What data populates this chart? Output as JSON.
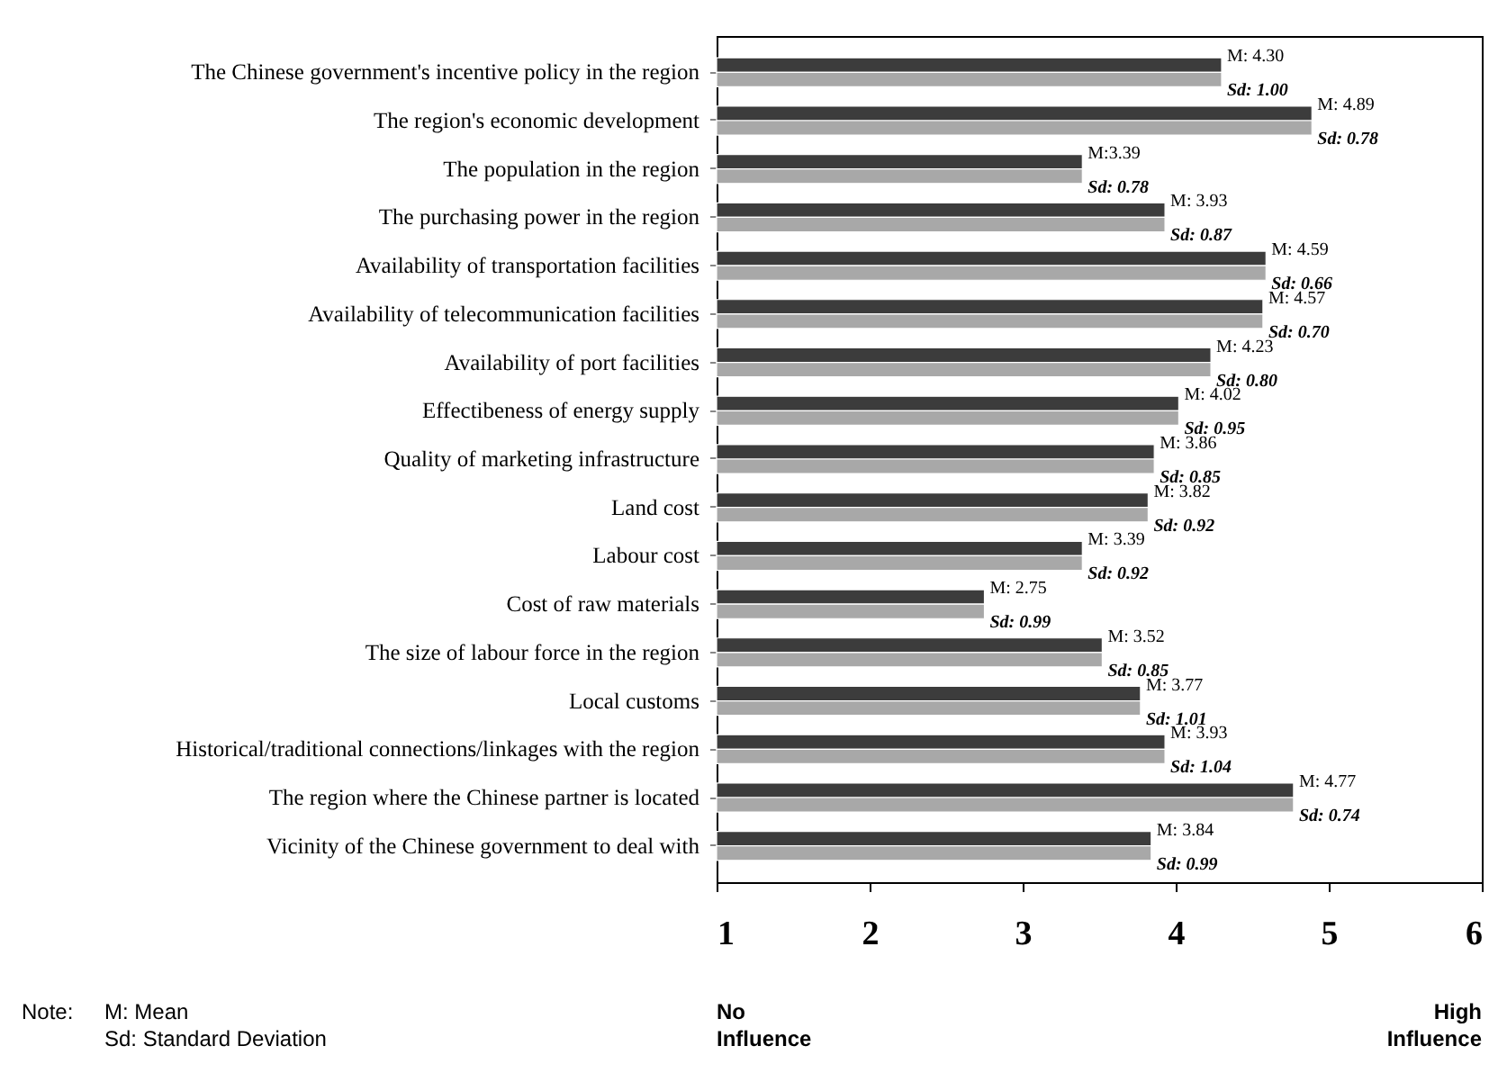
{
  "chart_data": {
    "type": "bar",
    "orientation": "horizontal",
    "categories": [
      "The Chinese government's incentive policy in the region",
      "The region's economic development",
      "The population in the region",
      "The purchasing power in the region",
      "Availability of transportation facilities",
      "Availability of telecommunication facilities",
      "Availability of port facilities",
      "Effectibeness of energy supply",
      "Quality of marketing infrastructure",
      "Land cost",
      "Labour cost",
      "Cost of raw materials",
      "The size of labour force in the region",
      "Local customs",
      "Historical/traditional connections/linkages with the region",
      "The region where the Chinese partner is located",
      "Vicinity of the Chinese government to deal with"
    ],
    "series": [
      {
        "color": "#3c3c3c",
        "values": [
          4.3,
          4.89,
          3.39,
          3.93,
          4.59,
          4.57,
          4.23,
          4.02,
          3.86,
          3.82,
          3.39,
          2.75,
          3.52,
          3.77,
          3.93,
          4.77,
          3.84
        ],
        "value_labels": [
          "M: 4.30",
          "M: 4.89",
          "M:3.39",
          "M: 3.93",
          "M: 4.59",
          "M: 4.57",
          "M: 4.23",
          "M: 4.02",
          "M: 3.86",
          "M: 3.82",
          "M: 3.39",
          "M: 2.75",
          "M: 3.52",
          "M: 3.77",
          "M: 3.93",
          "M: 4.77",
          "M: 3.84"
        ]
      },
      {
        "color": "#a8a8a8",
        "values": [
          4.3,
          4.89,
          3.39,
          3.93,
          4.59,
          4.57,
          4.23,
          4.02,
          3.86,
          3.82,
          3.39,
          2.75,
          3.52,
          3.77,
          3.93,
          4.77,
          3.84
        ]
      }
    ],
    "xlim": [
      1,
      6
    ],
    "xticks": [
      1,
      2,
      3,
      4,
      5,
      6
    ],
    "grid": false,
    "annotations": [
      "No\nInfluence",
      "High\nInfluence",
      "Note:",
      "M: Mean\nSd: Standard Deviation",
      {
        "text": "Sd: 1.00",
        "x": 4.3,
        "y": "The Chinese government's incentive policy in the region"
      },
      {
        "text": "Sd: 0.78",
        "x": 4.89,
        "y": "The region's economic development"
      },
      {
        "text": "Sd: 0.78",
        "x": 3.39,
        "y": "The population in the region"
      },
      {
        "text": "Sd: 0.87",
        "x": 3.93,
        "y": "The purchasing power in the region"
      },
      {
        "text": "Sd: 0.66",
        "x": 4.59,
        "y": "Availability of transportation facilities"
      },
      {
        "text": "Sd: 0.70",
        "x": 4.57,
        "y": "Availability of telecommunication facilities"
      },
      {
        "text": "Sd: 0.80",
        "x": 4.23,
        "y": "Availability of port facilities"
      },
      {
        "text": "Sd: 0.95",
        "x": 4.02,
        "y": "Effectibeness of energy supply"
      },
      {
        "text": "Sd: 0.85",
        "x": 3.86,
        "y": "Quality of marketing infrastructure"
      },
      {
        "text": "Sd: 0.92",
        "x": 3.82,
        "y": "Land cost"
      },
      {
        "text": "Sd: 0.92",
        "x": 3.39,
        "y": "Labour cost"
      },
      {
        "text": "Sd: 0.99",
        "x": 2.75,
        "y": "Cost of raw materials"
      },
      {
        "text": "Sd: 0.85",
        "x": 3.52,
        "y": "The size of labour force in the region"
      },
      {
        "text": "Sd: 1.01",
        "x": 3.77,
        "y": "Local customs"
      },
      {
        "text": "Sd: 1.04",
        "x": 3.93,
        "y": "Historical/traditional connections/linkages with the region"
      },
      {
        "text": "Sd: 0.74",
        "x": 4.77,
        "y": "The region where the Chinese partner is located"
      },
      {
        "text": "Sd: 0.99",
        "x": 3.84,
        "y": "Vicinity of the Chinese government to deal with"
      }
    ]
  }
}
